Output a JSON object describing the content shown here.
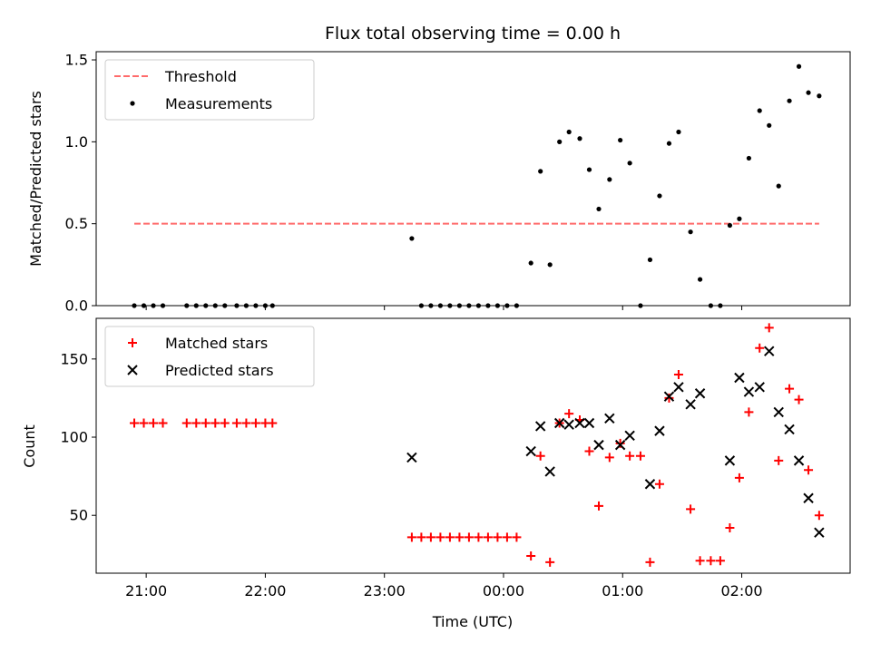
{
  "chart_data": [
    {
      "type": "scatter",
      "panel": "top",
      "title": "Flux total observing time = 0.00 h",
      "xlabel": "",
      "ylabel": "Matched/Predicted stars",
      "ylim": [
        0,
        1.55
      ],
      "yticks": [
        0.0,
        0.5,
        1.0,
        1.5
      ],
      "ytick_labels": [
        "0.0",
        "0.5",
        "1.0",
        "1.5"
      ],
      "xlim": [
        20.58,
        26.91
      ],
      "xticks": [
        21,
        22,
        23,
        24,
        25,
        26
      ],
      "xtick_labels": [
        "",
        "",
        "",
        "",
        "",
        ""
      ],
      "grid": false,
      "legend_position": "upper-left",
      "threshold": {
        "name": "Threshold",
        "value": 0.5,
        "x_range": [
          20.9,
          26.65
        ],
        "color": "#ff6b6b",
        "style": "dashed"
      },
      "series": [
        {
          "name": "Measurements",
          "marker": "dot",
          "color": "#000000",
          "x": [
            20.9,
            20.98,
            21.06,
            21.14,
            21.34,
            21.42,
            21.5,
            21.58,
            21.66,
            21.76,
            21.84,
            21.92,
            22.0,
            22.06,
            23.23,
            23.31,
            23.39,
            23.47,
            23.55,
            23.63,
            23.71,
            23.79,
            23.87,
            23.95,
            24.03,
            24.11,
            24.23,
            24.31,
            24.39,
            24.47,
            24.55,
            24.64,
            24.72,
            24.8,
            24.89,
            24.98,
            25.06,
            25.15,
            25.23,
            25.31,
            25.39,
            25.47,
            25.57,
            25.65,
            25.74,
            25.82,
            25.9,
            25.98,
            26.06,
            26.15,
            26.23,
            26.31,
            26.4,
            26.48,
            26.56,
            26.65
          ],
          "y": [
            0,
            0,
            0,
            0,
            0,
            0,
            0,
            0,
            0,
            0,
            0,
            0,
            0,
            0,
            0.41,
            0,
            0,
            0,
            0,
            0,
            0,
            0,
            0,
            0,
            0,
            0,
            0.26,
            0.82,
            0.25,
            1.0,
            1.06,
            1.02,
            0.83,
            0.59,
            0.77,
            1.01,
            0.87,
            0,
            0.28,
            0.67,
            0.99,
            1.06,
            0.45,
            0.16,
            0,
            0,
            0.49,
            0.53,
            0.9,
            1.19,
            1.1,
            0.73,
            1.25,
            1.46,
            1.3,
            1.28
          ]
        }
      ]
    },
    {
      "type": "scatter",
      "panel": "bottom",
      "title": "",
      "xlabel": "Time (UTC)",
      "ylabel": "Count",
      "ylim": [
        13,
        176
      ],
      "yticks": [
        50,
        100,
        150
      ],
      "ytick_labels": [
        "50",
        "100",
        "150"
      ],
      "xlim": [
        20.58,
        26.91
      ],
      "xticks": [
        21,
        22,
        23,
        24,
        25,
        26
      ],
      "xtick_labels": [
        "21:00",
        "22:00",
        "23:00",
        "00:00",
        "01:00",
        "02:00"
      ],
      "grid": false,
      "legend_position": "upper-left",
      "series": [
        {
          "name": "Matched stars",
          "marker": "plus",
          "color": "#ff0000",
          "x": [
            20.9,
            20.98,
            21.06,
            21.14,
            21.34,
            21.42,
            21.5,
            21.58,
            21.66,
            21.76,
            21.84,
            21.92,
            22.0,
            22.06,
            23.23,
            23.31,
            23.39,
            23.47,
            23.55,
            23.63,
            23.71,
            23.79,
            23.87,
            23.95,
            24.03,
            24.11,
            24.23,
            24.31,
            24.39,
            24.47,
            24.55,
            24.64,
            24.72,
            24.8,
            24.89,
            24.98,
            25.06,
            25.15,
            25.23,
            25.31,
            25.39,
            25.47,
            25.57,
            25.65,
            25.74,
            25.82,
            25.9,
            25.98,
            26.06,
            26.15,
            26.23,
            26.31,
            26.4,
            26.48,
            26.56,
            26.65
          ],
          "y": [
            109,
            109,
            109,
            109,
            109,
            109,
            109,
            109,
            109,
            109,
            109,
            109,
            109,
            109,
            36,
            36,
            36,
            36,
            36,
            36,
            36,
            36,
            36,
            36,
            36,
            36,
            24,
            88,
            20,
            109,
            115,
            111,
            91,
            56,
            87,
            96,
            88,
            88,
            20,
            70,
            125,
            140,
            54,
            21,
            21,
            21,
            42,
            74,
            116,
            157,
            170,
            85,
            131,
            124,
            79,
            50
          ]
        },
        {
          "name": "Predicted stars",
          "marker": "x",
          "color": "#000000",
          "x": [
            23.23,
            24.23,
            24.31,
            24.39,
            24.47,
            24.55,
            24.64,
            24.72,
            24.8,
            24.89,
            24.98,
            25.06,
            25.23,
            25.31,
            25.39,
            25.47,
            25.57,
            25.65,
            25.9,
            25.98,
            26.06,
            26.15,
            26.23,
            26.31,
            26.4,
            26.48,
            26.56,
            26.65
          ],
          "y": [
            87,
            91,
            107,
            78,
            109,
            108,
            109,
            109,
            95,
            112,
            95,
            101,
            70,
            104,
            126,
            132,
            121,
            128,
            85,
            138,
            129,
            132,
            155,
            116,
            105,
            85,
            61,
            39
          ]
        }
      ]
    }
  ]
}
